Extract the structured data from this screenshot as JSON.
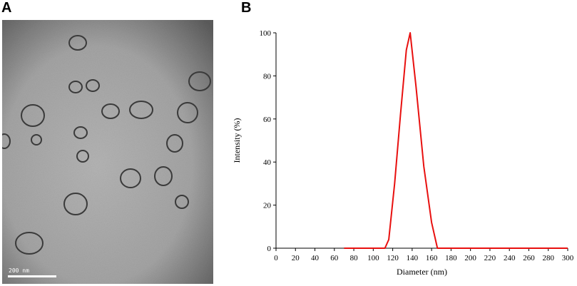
{
  "panels": {
    "a_label": "A",
    "b_label": "B"
  },
  "tem": {
    "scale_bar_label": "200 nm",
    "background_color": "#a9a9a9",
    "vesicle_color": "#3a3a3a"
  },
  "chart_data": {
    "type": "line",
    "xlabel": "Diameter (nm)",
    "ylabel": "Intensity (%)",
    "xlim": [
      0,
      300
    ],
    "ylim": [
      0,
      100
    ],
    "xticks": [
      0,
      20,
      40,
      60,
      80,
      100,
      120,
      140,
      160,
      180,
      200,
      220,
      240,
      260,
      280,
      300
    ],
    "yticks": [
      0,
      20,
      40,
      60,
      80,
      100
    ],
    "grid": false,
    "line_color": "#e8100f",
    "series": [
      {
        "x": [
          70,
          112,
          116,
          122,
          128,
          134,
          138,
          144,
          152,
          160,
          166,
          300
        ],
        "y": [
          0,
          0,
          4,
          30,
          62,
          92,
          100,
          75,
          38,
          12,
          0,
          0
        ]
      }
    ]
  }
}
